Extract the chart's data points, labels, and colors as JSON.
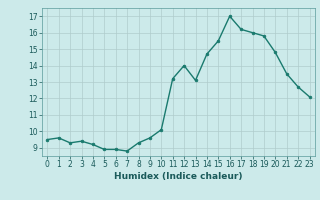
{
  "x": [
    0,
    1,
    2,
    3,
    4,
    5,
    6,
    7,
    8,
    9,
    10,
    11,
    12,
    13,
    14,
    15,
    16,
    17,
    18,
    19,
    20,
    21,
    22,
    23
  ],
  "y": [
    9.5,
    9.6,
    9.3,
    9.4,
    9.2,
    8.9,
    8.9,
    8.8,
    9.3,
    9.6,
    10.1,
    13.2,
    14.0,
    13.1,
    14.7,
    15.5,
    17.0,
    16.2,
    16.0,
    15.8,
    14.8,
    13.5,
    12.7,
    12.1
  ],
  "line_color": "#1a7a6e",
  "marker": "o",
  "marker_size": 2,
  "bg_color": "#cceaea",
  "grid_color": "#b0cccc",
  "xlabel": "Humidex (Indice chaleur)",
  "xlim": [
    -0.5,
    23.5
  ],
  "ylim": [
    8.5,
    17.5
  ],
  "yticks": [
    9,
    10,
    11,
    12,
    13,
    14,
    15,
    16,
    17
  ],
  "xticks": [
    0,
    1,
    2,
    3,
    4,
    5,
    6,
    7,
    8,
    9,
    10,
    11,
    12,
    13,
    14,
    15,
    16,
    17,
    18,
    19,
    20,
    21,
    22,
    23
  ],
  "tick_fontsize": 5.5,
  "label_fontsize": 6.5,
  "line_width": 1.0
}
